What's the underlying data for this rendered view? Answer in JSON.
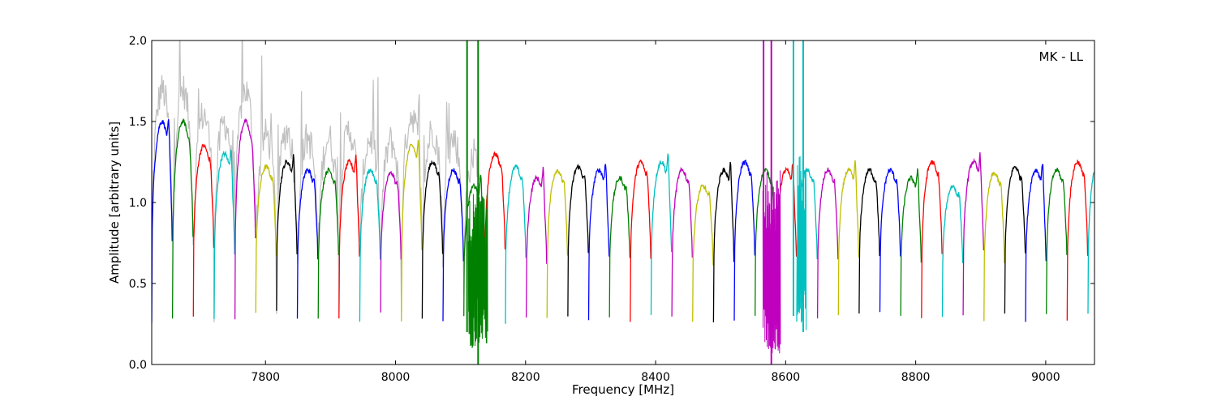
{
  "chart_data": {
    "type": "line",
    "title": "",
    "annotation": "MK - LL",
    "xlabel": "Frequency [MHz]",
    "ylabel": "Amplitude [arbitrary units]",
    "xlim": [
      7625,
      9075
    ],
    "ylim": [
      0.0,
      2.0
    ],
    "grid": false,
    "x_ticks": [
      7800,
      8000,
      8200,
      8400,
      8600,
      8800,
      9000
    ],
    "y_ticks": [
      0.0,
      0.5,
      1.0,
      1.5,
      2.0
    ],
    "x_tick_labels": [
      "7800",
      "8000",
      "8200",
      "8400",
      "8600",
      "8800",
      "9000"
    ],
    "y_tick_labels": [
      "0.0",
      "0.5",
      "1.0",
      "1.5",
      "2.0"
    ],
    "background_series_color": "#c0c0c0",
    "channel_width_mhz": 32,
    "channel_start_mhz": 7625,
    "channel_color_cycle": [
      "#0000ff",
      "#008000",
      "#ff0000",
      "#00bfbf",
      "#bf00bf",
      "#bfbf00",
      "#000000"
    ],
    "channel_levels": [
      1.5,
      1.5,
      1.35,
      1.3,
      1.5,
      1.22,
      1.25,
      1.2,
      1.2,
      1.25,
      1.2,
      1.18,
      1.35,
      1.25,
      1.2,
      1.1,
      1.3,
      1.22,
      1.15,
      1.2,
      1.22,
      1.2,
      1.15,
      1.25,
      1.25,
      1.2,
      1.1,
      1.2,
      1.25,
      1.2,
      1.2,
      1.2,
      1.2,
      1.2,
      1.2,
      1.2,
      1.15,
      1.25,
      1.1,
      1.25,
      1.18,
      1.22,
      1.2,
      1.2,
      1.25,
      1.25
    ]
  }
}
